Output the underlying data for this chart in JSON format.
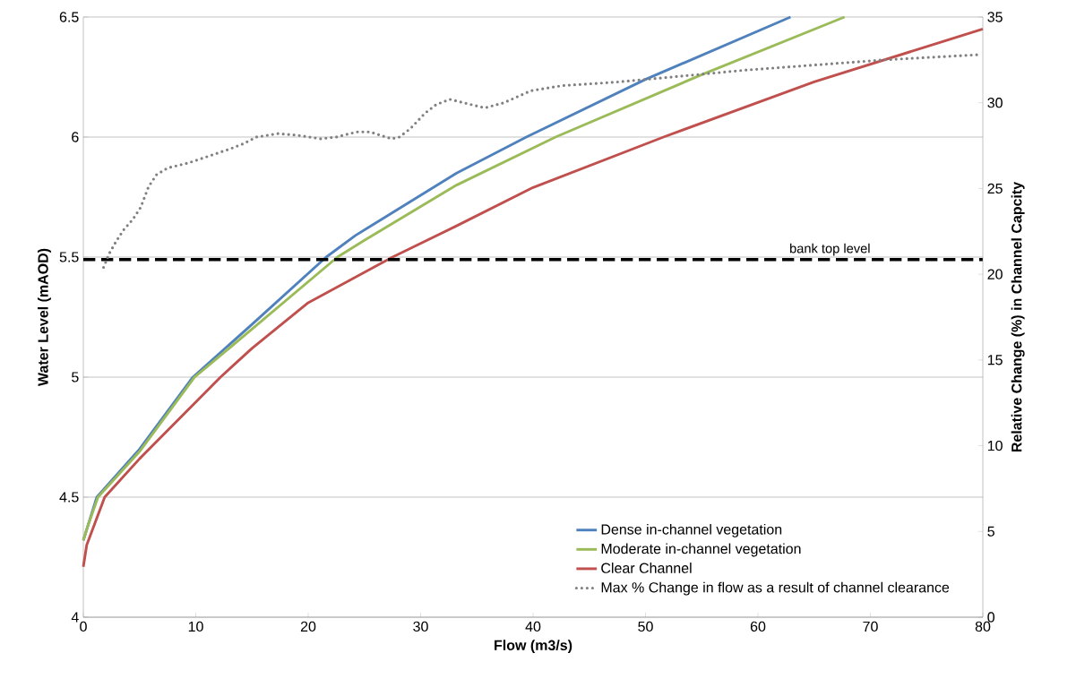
{
  "chart_data": {
    "type": "line",
    "xlabel": "Flow (m3/s)",
    "ylabel": "Water Level (mAOD)",
    "y2label": "Relative Change (%) in Channel Capcity",
    "xlim": [
      0,
      80
    ],
    "xticks": [
      0,
      10,
      20,
      30,
      40,
      50,
      60,
      70,
      80
    ],
    "ylim": [
      4,
      6.5
    ],
    "yticks": [
      4,
      4.5,
      5,
      5.5,
      6,
      6.5
    ],
    "y2lim": [
      0,
      35
    ],
    "y2ticks": [
      0,
      5,
      10,
      15,
      20,
      25,
      30,
      35
    ],
    "grid": "y",
    "legend": "bottom right",
    "marker": "none",
    "series": [
      {
        "name": "Dense in-channel vegetation",
        "color": "#4f81bd",
        "line_style": "solid",
        "x": [
          0,
          0.4,
          1.2,
          5,
          9.75,
          15,
          21.6,
          24.2,
          33.2,
          39.4,
          50,
          62.9
        ],
        "values": [
          4.32,
          4.38,
          4.5,
          4.7,
          5.0,
          5.22,
          5.5,
          5.59,
          5.85,
          6.0,
          6.24,
          6.5
        ]
      },
      {
        "name": "Moderate in-channel vegetation",
        "color": "#9bbb59",
        "line_style": "solid",
        "x": [
          0,
          0.4,
          1.3,
          5,
          9.9,
          15,
          22.6,
          25,
          33.2,
          42,
          55,
          67.7
        ],
        "values": [
          4.32,
          4.38,
          4.5,
          4.69,
          5.0,
          5.2,
          5.5,
          5.57,
          5.8,
          6.0,
          6.26,
          6.5
        ]
      },
      {
        "name": "Clear Channel",
        "color": "#c0504d",
        "line_style": "solid",
        "x": [
          0,
          0.3,
          1.9,
          5,
          12.2,
          15,
          20,
          27.5,
          33.2,
          40,
          51.6,
          65,
          80
        ],
        "values": [
          4.21,
          4.3,
          4.5,
          4.66,
          5.0,
          5.12,
          5.31,
          5.5,
          5.63,
          5.79,
          6.0,
          6.23,
          6.45
        ]
      },
      {
        "name": "Max % Change in flow as a result of channel clearance",
        "color": "#808080",
        "line_style": "dotted",
        "axis": "y2",
        "x": [
          1.8,
          2.3,
          2.9,
          3.6,
          4.4,
          5.1,
          5.8,
          6.5,
          7.5,
          9.4,
          11.2,
          13,
          14.2,
          15.4,
          17.3,
          19.1,
          21.1,
          22.5,
          24.3,
          25.5,
          27.4,
          28.1,
          29.1,
          30.4,
          31.4,
          32.6,
          35.7,
          37.4,
          39.8,
          42.6,
          47.3,
          52.3,
          58.8,
          65,
          71.2,
          79.5
        ],
        "values": [
          20.4,
          21.2,
          21.9,
          22.6,
          23.2,
          23.9,
          25.1,
          25.8,
          26.2,
          26.5,
          26.9,
          27.3,
          27.6,
          28.0,
          28.2,
          28.1,
          27.9,
          28.0,
          28.3,
          28.3,
          27.9,
          28.0,
          28.5,
          29.4,
          29.9,
          30.2,
          29.7,
          30.0,
          30.7,
          31.0,
          31.2,
          31.5,
          31.9,
          32.2,
          32.5,
          32.8
        ]
      }
    ],
    "ref_lines": [
      {
        "axis": "y",
        "value": 5.49,
        "label": "bank top level",
        "color": "#000000",
        "line_style": "dashed"
      }
    ]
  }
}
